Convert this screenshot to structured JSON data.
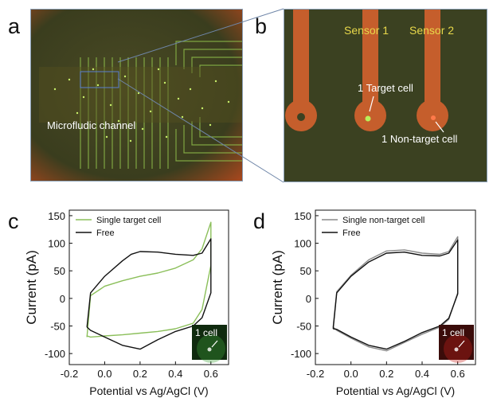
{
  "panels": {
    "a": {
      "letter": "a",
      "label": "Microfludic channel"
    },
    "b": {
      "letter": "b",
      "sensor1": "Sensor 1",
      "sensor2": "Sensor 2",
      "target": "1 Target cell",
      "nontarget": "1 Non-target cell"
    },
    "c": {
      "letter": "c",
      "inset_label": "1 cell"
    },
    "d": {
      "letter": "d",
      "inset_label": "1 cell"
    }
  },
  "colors": {
    "target_series": "#8bbf5a",
    "nontarget_series": "#8a8a8a",
    "free_series": "#111111",
    "sensor_text": "#e8d84a",
    "electrode": "#d9622e"
  },
  "chart_data": [
    {
      "type": "line",
      "xlabel": "Potential vs Ag/AgCl (V)",
      "ylabel": "Current (pA)",
      "xlim": [
        -0.2,
        0.7
      ],
      "ylim": [
        -120,
        160
      ],
      "xticks": [
        "-0.2",
        "0.0",
        "0.2",
        "0.4",
        "0.6"
      ],
      "yticks": [
        "150",
        "100",
        "50",
        "0",
        "-50",
        "-100"
      ],
      "legend_position": "top-left",
      "series": [
        {
          "name": "Single target cell",
          "color": "#8bbf5a",
          "x": [
            -0.1,
            -0.08,
            0.0,
            0.1,
            0.2,
            0.3,
            0.4,
            0.5,
            0.55,
            0.6,
            0.6,
            0.55,
            0.5,
            0.4,
            0.3,
            0.2,
            0.1,
            0.0,
            -0.08,
            -0.1,
            -0.1
          ],
          "y": [
            -70,
            5,
            22,
            32,
            40,
            46,
            55,
            70,
            90,
            138,
            60,
            -20,
            -45,
            -55,
            -60,
            -63,
            -66,
            -68,
            -70,
            -68,
            -70
          ]
        },
        {
          "name": "Free",
          "color": "#111111",
          "x": [
            -0.1,
            -0.08,
            0.0,
            0.1,
            0.15,
            0.2,
            0.3,
            0.4,
            0.5,
            0.55,
            0.6,
            0.6,
            0.55,
            0.5,
            0.4,
            0.3,
            0.2,
            0.1,
            0.0,
            -0.08,
            -0.1,
            -0.1
          ],
          "y": [
            -52,
            10,
            40,
            68,
            80,
            85,
            84,
            80,
            78,
            82,
            108,
            10,
            -35,
            -50,
            -60,
            -75,
            -92,
            -85,
            -70,
            -58,
            -52,
            -52
          ]
        }
      ]
    },
    {
      "type": "line",
      "xlabel": "Potential vs Ag/AgCl (V)",
      "ylabel": "Current (pA)",
      "xlim": [
        -0.2,
        0.7
      ],
      "ylim": [
        -120,
        160
      ],
      "xticks": [
        "-0.2",
        "0.0",
        "0.2",
        "0.4",
        "0.6"
      ],
      "yticks": [
        "150",
        "100",
        "50",
        "0",
        "-50",
        "-100"
      ],
      "legend_position": "top-left",
      "series": [
        {
          "name": "Single non-target cell",
          "color": "#8a8a8a",
          "x": [
            -0.1,
            -0.08,
            0.0,
            0.1,
            0.2,
            0.3,
            0.4,
            0.5,
            0.55,
            0.6,
            0.6,
            0.55,
            0.5,
            0.4,
            0.3,
            0.2,
            0.1,
            0.0,
            -0.08,
            -0.1,
            -0.1
          ],
          "y": [
            -52,
            12,
            42,
            70,
            86,
            88,
            82,
            80,
            85,
            112,
            10,
            -38,
            -52,
            -65,
            -80,
            -95,
            -88,
            -72,
            -58,
            -52,
            -52
          ]
        },
        {
          "name": "Free",
          "color": "#111111",
          "x": [
            -0.1,
            -0.08,
            0.0,
            0.1,
            0.2,
            0.3,
            0.4,
            0.5,
            0.55,
            0.6,
            0.6,
            0.55,
            0.5,
            0.4,
            0.3,
            0.2,
            0.1,
            0.0,
            -0.08,
            -0.1,
            -0.1
          ],
          "y": [
            -55,
            10,
            40,
            66,
            82,
            84,
            78,
            77,
            82,
            106,
            8,
            -36,
            -50,
            -62,
            -78,
            -92,
            -85,
            -70,
            -56,
            -55,
            -55
          ]
        }
      ]
    }
  ]
}
